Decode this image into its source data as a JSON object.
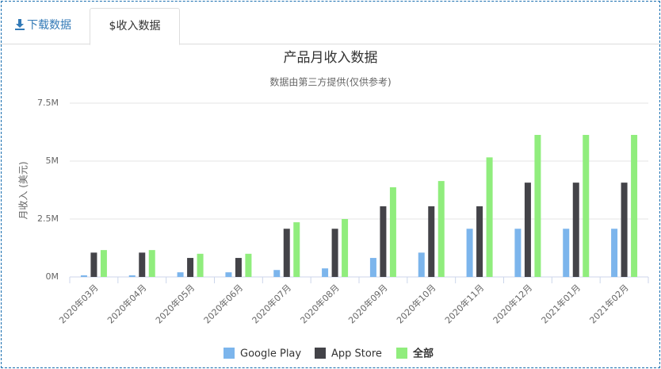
{
  "tabs": [
    "下载数据",
    "$收入数据"
  ],
  "chart_data": {
    "type": "bar",
    "title": "产品月收入数据",
    "subtitle": "数据由第三方提供(仅供参考)",
    "y_label": "月收入 (美元)",
    "categories": [
      "2020年03月",
      "2020年04月",
      "2020年05月",
      "2020年06月",
      "2020年07月",
      "2020年08月",
      "2020年09月",
      "2020年10月",
      "2020年11月",
      "2020年12月",
      "2021年01月",
      "2021年02月"
    ],
    "series": [
      {
        "name": "Google Play",
        "color": "#7cb5ec",
        "values": [
          70000,
          70000,
          200000,
          200000,
          300000,
          370000,
          820000,
          1050000,
          2080000,
          2080000,
          2080000,
          2080000
        ]
      },
      {
        "name": "App Store",
        "color": "#434348",
        "values": [
          1050000,
          1050000,
          820000,
          820000,
          2080000,
          2080000,
          3050000,
          3050000,
          3050000,
          4070000,
          4070000,
          4070000
        ]
      },
      {
        "name": "全部",
        "color": "#90ed7d",
        "values": [
          1160000,
          1160000,
          1000000,
          1000000,
          2360000,
          2500000,
          3870000,
          4140000,
          5160000,
          6130000,
          6130000,
          6130000
        ]
      }
    ],
    "ylim": [
      0,
      7500000
    ],
    "yticks": [
      {
        "value": 0,
        "label": "0M"
      },
      {
        "value": 2500000,
        "label": "2.5M"
      },
      {
        "value": 5000000,
        "label": "5M"
      },
      {
        "value": 7500000,
        "label": "7.5M"
      }
    ],
    "grid": true
  }
}
